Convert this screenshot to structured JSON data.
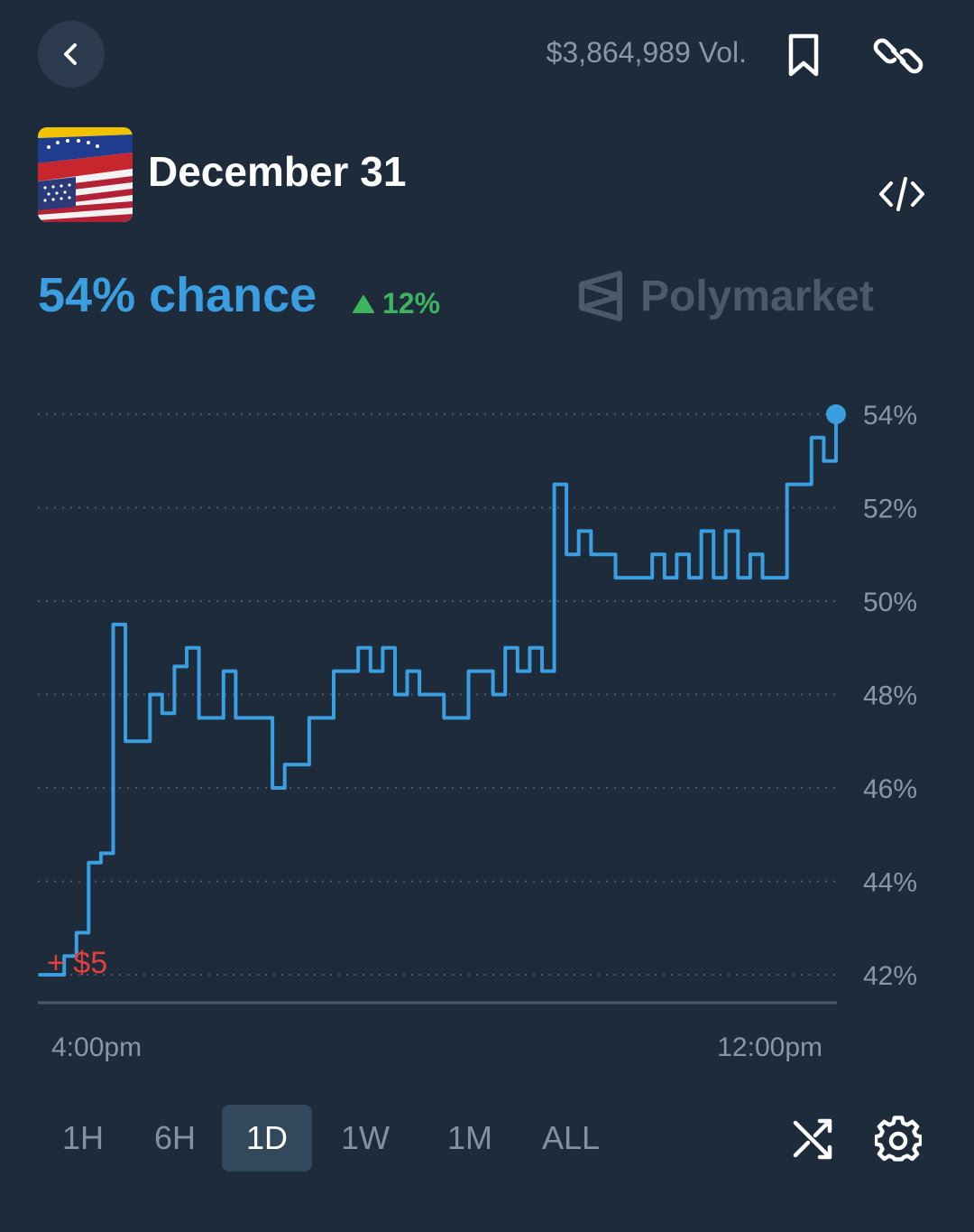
{
  "header": {
    "volume": "$3,864,989 Vol.",
    "icons": {
      "back": "chevron-left-icon",
      "bookmark": "bookmark-icon",
      "share": "link-icon",
      "embed": "code-icon"
    }
  },
  "market": {
    "title": "December 31",
    "thumbnail": "venezuela-usa-flag-image",
    "chance_text": "54% chance",
    "change_text": "12%",
    "change_direction": "up",
    "watermark": "Polymarket"
  },
  "colors": {
    "background": "#1d2b3b",
    "line": "#3a9ee0",
    "up": "#3cb55e",
    "trade": "#e0413c",
    "muted": "#8a97a6"
  },
  "chart_data": {
    "type": "line",
    "ylim": [
      42,
      54
    ],
    "yticks": [
      "54%",
      "52%",
      "50%",
      "48%",
      "46%",
      "44%",
      "42%"
    ],
    "ytick_values": [
      54,
      52,
      50,
      48,
      46,
      44,
      42
    ],
    "xticks": [
      "4:00pm",
      "12:00pm"
    ],
    "grid": true,
    "annotation": "+ $5",
    "series": [
      {
        "values": [
          42.0,
          42.0,
          42.4,
          42.9,
          44.4,
          44.6,
          49.5,
          47.0,
          47.0,
          48.0,
          47.6,
          48.6,
          49.0,
          47.5,
          47.5,
          48.5,
          47.5,
          47.5,
          47.5,
          46.0,
          46.5,
          46.5,
          47.5,
          47.5,
          48.5,
          48.5,
          49.0,
          48.5,
          49.0,
          48.0,
          48.5,
          48.0,
          48.0,
          47.5,
          47.5,
          48.5,
          48.5,
          48.0,
          49.0,
          48.5,
          49.0,
          48.5,
          52.5,
          51.0,
          51.5,
          51.0,
          51.0,
          50.5,
          50.5,
          50.5,
          51.0,
          50.5,
          51.0,
          50.5,
          51.5,
          50.5,
          51.5,
          50.5,
          51.0,
          50.5,
          50.5,
          52.5,
          52.5,
          53.5,
          53.0,
          54.0
        ]
      }
    ]
  },
  "time_ranges": [
    {
      "label": "1H",
      "active": false
    },
    {
      "label": "6H",
      "active": false
    },
    {
      "label": "1D",
      "active": true
    },
    {
      "label": "1W",
      "active": false
    },
    {
      "label": "1M",
      "active": false
    },
    {
      "label": "ALL",
      "active": false
    }
  ],
  "toolbar": {
    "icons": {
      "shuffle": "shuffle-icon",
      "settings": "gear-icon"
    }
  }
}
